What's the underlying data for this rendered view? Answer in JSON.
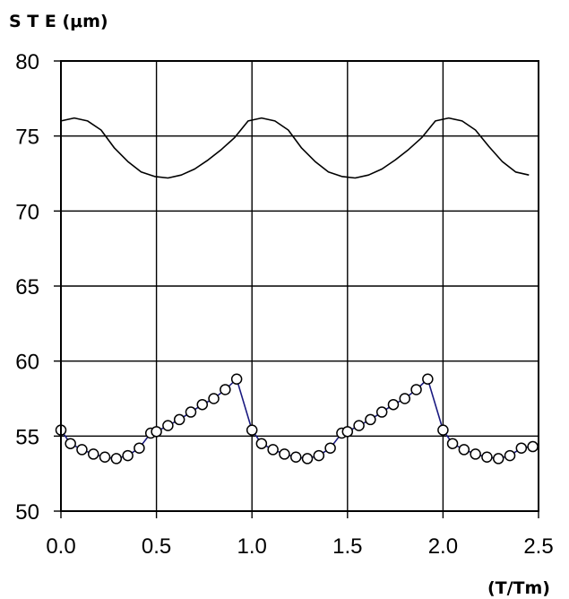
{
  "chart_data": {
    "type": "line",
    "ylabel": "S T E (μm)",
    "xlabel": "(T/Tm)",
    "xlim": [
      0,
      2.5
    ],
    "ylim": [
      50,
      80
    ],
    "x_ticks": [
      "0.0",
      "0.5",
      "1.0",
      "1.5",
      "2.0",
      "2.5"
    ],
    "y_ticks": [
      "50",
      "55",
      "60",
      "65",
      "70",
      "75",
      "80"
    ],
    "grid": true,
    "legend": "none",
    "series": [
      {
        "style": "line",
        "color": "#000000",
        "x": [
          0.0,
          0.07,
          0.14,
          0.21,
          0.28,
          0.35,
          0.42,
          0.49,
          0.56,
          0.63,
          0.7,
          0.77,
          0.84,
          0.91,
          0.98,
          1.05,
          1.12,
          1.19,
          1.26,
          1.33,
          1.4,
          1.47,
          1.54,
          1.61,
          1.68,
          1.75,
          1.82,
          1.89,
          1.96,
          2.03,
          2.1,
          2.17,
          2.24,
          2.31,
          2.38,
          2.45
        ],
        "y": [
          76.0,
          76.2,
          76.0,
          75.4,
          74.2,
          73.3,
          72.6,
          72.3,
          72.2,
          72.4,
          72.8,
          73.4,
          74.1,
          74.9,
          76.0,
          76.2,
          76.0,
          75.4,
          74.2,
          73.3,
          72.6,
          72.3,
          72.2,
          72.4,
          72.8,
          73.4,
          74.1,
          74.9,
          76.0,
          76.2,
          76.0,
          75.4,
          74.3,
          73.3,
          72.6,
          72.4
        ]
      },
      {
        "style": "line-markers",
        "color": "#1a1a80",
        "marker_fill": "#ffffff",
        "x": [
          0.0,
          0.05,
          0.11,
          0.17,
          0.23,
          0.29,
          0.35,
          0.41,
          0.47,
          0.5,
          0.56,
          0.62,
          0.68,
          0.74,
          0.8,
          0.86,
          0.92,
          1.0,
          1.05,
          1.11,
          1.17,
          1.23,
          1.29,
          1.35,
          1.41,
          1.47,
          1.5,
          1.56,
          1.62,
          1.68,
          1.74,
          1.8,
          1.86,
          1.92,
          2.0,
          2.05,
          2.11,
          2.17,
          2.23,
          2.29,
          2.35,
          2.41,
          2.47
        ],
        "y": [
          55.4,
          54.5,
          54.1,
          53.8,
          53.6,
          53.5,
          53.7,
          54.2,
          55.2,
          55.3,
          55.7,
          56.1,
          56.6,
          57.1,
          57.5,
          58.1,
          58.8,
          55.4,
          54.5,
          54.1,
          53.8,
          53.6,
          53.5,
          53.7,
          54.2,
          55.2,
          55.3,
          55.7,
          56.1,
          56.6,
          57.1,
          57.5,
          58.1,
          58.8,
          55.4,
          54.5,
          54.1,
          53.8,
          53.6,
          53.5,
          53.7,
          54.2,
          54.3
        ]
      }
    ]
  }
}
